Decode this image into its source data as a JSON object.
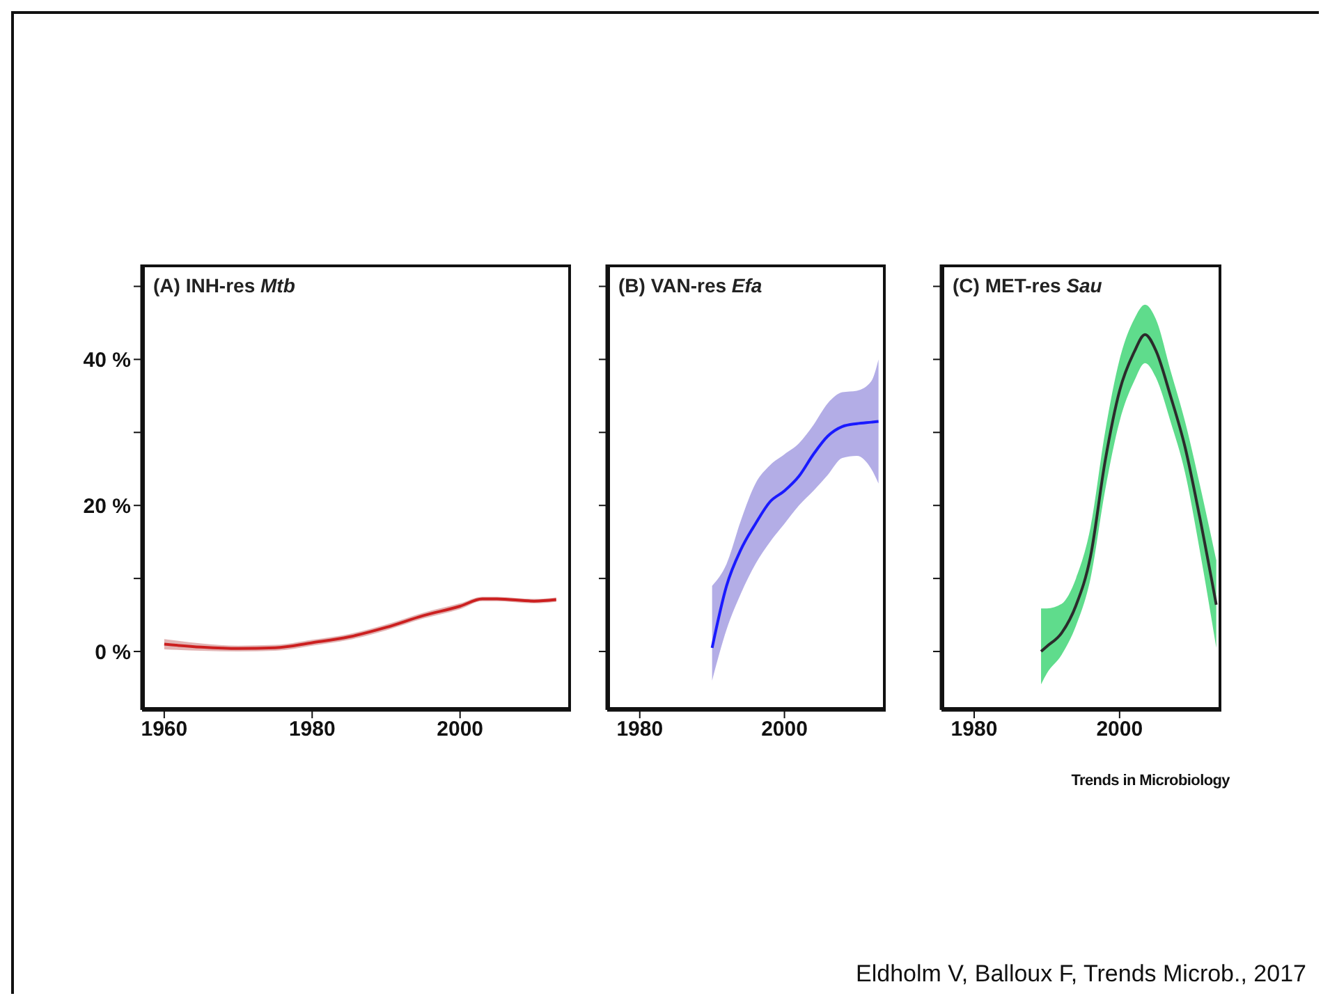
{
  "chart_data": [
    {
      "type": "line",
      "title": "(A) INH-res Mtb",
      "x": [
        1960,
        1965,
        1970,
        1975,
        1980,
        1985,
        1990,
        1995,
        2000,
        2003,
        2005,
        2010,
        2013
      ],
      "xlim": [
        1957,
        2015
      ],
      "xticks": [
        1960,
        1980,
        2000
      ],
      "ylim": [
        -8,
        53
      ],
      "yticks": [
        {
          "value": 0,
          "label": "0 %"
        },
        {
          "value": 10,
          "label": null
        },
        {
          "value": 20,
          "label": "20 %"
        },
        {
          "value": 30,
          "label": null
        },
        {
          "value": 40,
          "label": "40 %"
        },
        {
          "value": 50,
          "label": null
        }
      ],
      "series": [
        {
          "color": "#e2b4b4",
          "values": [
            null,
            null,
            null,
            null,
            null,
            null,
            null,
            null,
            null,
            null,
            null,
            null,
            null
          ],
          "lower": [
            0.3,
            0.1,
            0,
            0.1,
            0.8,
            1.6,
            2.9,
            4.5,
            5.8,
            6.9,
            6.9,
            6.6,
            6.8
          ],
          "upper": [
            1.7,
            1.1,
            0.8,
            0.9,
            1.6,
            2.4,
            3.7,
            5.3,
            6.6,
            7.5,
            7.5,
            7.2,
            7.4
          ]
        },
        {
          "color": "#cc1f1f",
          "values": [
            1,
            0.6,
            0.4,
            0.5,
            1.2,
            2,
            3.3,
            4.9,
            6.2,
            7.2,
            7.2,
            6.9,
            7.1
          ]
        }
      ]
    },
    {
      "type": "line",
      "title": "(B) VAN-res Efa",
      "x": [
        1990,
        1992,
        1994,
        1996,
        1998,
        2000,
        2002,
        2004,
        2006,
        2008,
        2010,
        2012,
        2013
      ],
      "xlim": [
        1975.5,
        2014
      ],
      "xticks": [
        1980,
        2000
      ],
      "ylim": [
        -8,
        53
      ],
      "yticks": [
        0,
        10,
        20,
        30,
        40,
        50
      ],
      "tick_labels": "x",
      "series": [
        {
          "color": "#b3ade6",
          "values": [
            null,
            null,
            null,
            null,
            null,
            null,
            null,
            null,
            null,
            null,
            null,
            null,
            null
          ],
          "lower": [
            -4,
            3,
            8,
            12,
            15,
            17.5,
            20,
            22,
            24.2,
            26.5,
            26.8,
            25,
            23
          ],
          "upper": [
            9,
            12,
            18,
            23,
            25.5,
            27,
            28.5,
            31,
            34,
            35.5,
            35.7,
            37,
            40
          ]
        },
        {
          "color": "#1a1aff",
          "values": [
            0.5,
            9,
            14,
            17.5,
            20.5,
            22,
            24,
            27,
            29.5,
            30.8,
            31.2,
            31.4,
            31.5
          ]
        }
      ]
    },
    {
      "type": "line",
      "title": "(C) MET-res Sau",
      "x": [
        1989.2,
        1990,
        1992,
        1994,
        1996,
        1998,
        2000,
        2002,
        2003.5,
        2005,
        2007,
        2009,
        2011,
        2013.3
      ],
      "xlim": [
        1975.5,
        2014
      ],
      "xticks": [
        1980,
        2000
      ],
      "ylim": [
        -8,
        53
      ],
      "yticks": [
        0,
        10,
        20,
        30,
        40,
        50
      ],
      "tick_labels": "x",
      "annotations": [
        "Trends in Microbiology",
        "Eldholm V, Balloux F, Trends Microb., 2017"
      ],
      "series": [
        {
          "color": "#5fdc8c",
          "values": [
            null,
            null,
            null,
            null,
            null,
            null,
            null,
            null,
            null,
            null,
            null,
            null,
            null,
            null
          ],
          "lower": [
            -4.5,
            -3,
            -0.5,
            3.5,
            10,
            22,
            31.5,
            37,
            39.5,
            37.5,
            31.5,
            24.5,
            14,
            0.5
          ],
          "upper": [
            5.9,
            5.9,
            6.5,
            10,
            17,
            30,
            40,
            45.5,
            47.5,
            45.5,
            38.5,
            31.5,
            23,
            12.5
          ]
        },
        {
          "color": "#2b2b2b",
          "values": [
            0,
            0.7,
            2.5,
            6.3,
            13,
            26,
            35.7,
            41,
            43.4,
            41.2,
            35,
            28,
            18.5,
            6.4
          ]
        }
      ]
    }
  ]
}
